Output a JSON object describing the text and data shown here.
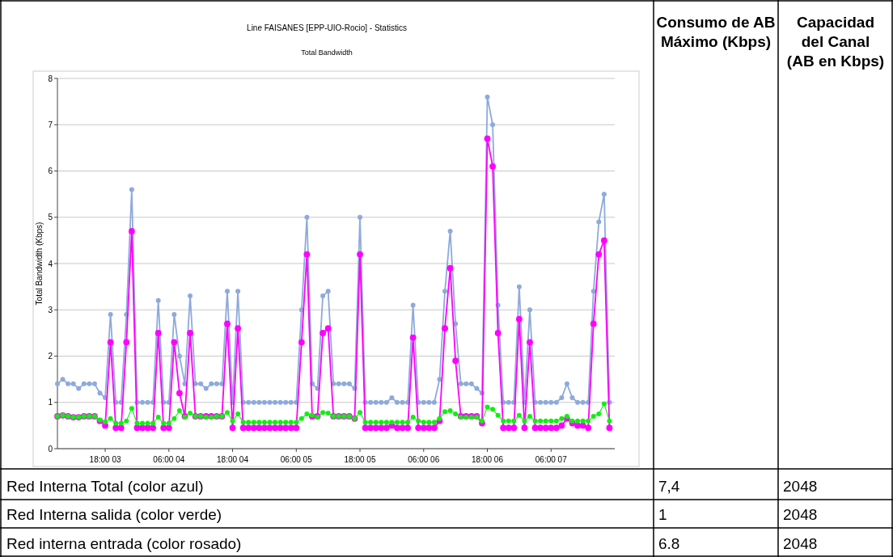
{
  "chart_data": [
    {
      "type": "line",
      "title": "Line FAISANES [EPP-UIO-Rocio] - Statistics",
      "subtitle": "Total Bandwidth",
      "ylabel": "Total Bandwidth (Kbps)",
      "marker": "circle",
      "grid": "y",
      "categories": [
        null,
        null,
        null,
        null,
        null,
        null,
        null,
        null,
        null,
        "18:00 03",
        null,
        null,
        null,
        null,
        null,
        null,
        null,
        null,
        null,
        null,
        null,
        "06:00 04",
        null,
        null,
        null,
        null,
        null,
        null,
        null,
        null,
        null,
        null,
        null,
        "18:00 04",
        null,
        null,
        null,
        null,
        null,
        null,
        null,
        null,
        null,
        null,
        null,
        "06:00 05",
        null,
        null,
        null,
        null,
        null,
        null,
        null,
        null,
        null,
        null,
        null,
        "18:00 05",
        null,
        null,
        null,
        null,
        null,
        null,
        null,
        null,
        null,
        null,
        null,
        "06:00 06",
        null,
        null,
        null,
        null,
        null,
        null,
        null,
        null,
        null,
        null,
        null,
        "18:00 06",
        null,
        null,
        null,
        null,
        null,
        null,
        null,
        null,
        null,
        null,
        null,
        "06:00 07",
        null,
        null,
        null,
        null,
        null,
        null,
        null,
        null,
        null,
        null,
        null
      ],
      "ylim": [
        0,
        8
      ],
      "yticks": [
        0,
        1,
        2,
        3,
        4,
        5,
        6,
        7,
        8
      ],
      "series": [
        {
          "color": "#8eaadc",
          "values": [
            1.4,
            1.5,
            1.4,
            1.4,
            1.3,
            1.4,
            1.4,
            1.4,
            1.2,
            1.1,
            2.9,
            1,
            1,
            2.9,
            5.6,
            1,
            1,
            1,
            1,
            3.2,
            1,
            1,
            2.9,
            2,
            1.4,
            3.3,
            1.4,
            1.4,
            1.3,
            1.4,
            1.4,
            1.4,
            3.4,
            1,
            3.4,
            1,
            1,
            1,
            1,
            1,
            1,
            1,
            1,
            1,
            1,
            1,
            3,
            5,
            1.4,
            1.3,
            3.3,
            3.4,
            1.4,
            1.4,
            1.4,
            1.4,
            1.3,
            5,
            1,
            1,
            1,
            1,
            1,
            1.1,
            1,
            1,
            1,
            3.1,
            1,
            1,
            1,
            1,
            1.5,
            3.4,
            4.7,
            2.7,
            1.4,
            1.4,
            1.4,
            1.3,
            1.2,
            7.6,
            7,
            3.1,
            1,
            1,
            1,
            3.5,
            1,
            3,
            1,
            1,
            1,
            1,
            1,
            1.1,
            1.4,
            1.1,
            1,
            1,
            1,
            3.4,
            4.9,
            5.5,
            1
          ]
        },
        {
          "color": "#ff00ff",
          "values": [
            0.7,
            0.72,
            0.7,
            0.68,
            0.68,
            0.7,
            0.7,
            0.7,
            0.6,
            0.5,
            2.3,
            0.45,
            0.45,
            2.3,
            4.7,
            0.45,
            0.45,
            0.45,
            0.45,
            2.5,
            0.45,
            0.45,
            2.3,
            1.2,
            0.7,
            2.5,
            0.7,
            0.7,
            0.7,
            0.7,
            0.7,
            0.7,
            2.7,
            0.45,
            2.6,
            0.45,
            0.45,
            0.45,
            0.45,
            0.45,
            0.45,
            0.45,
            0.45,
            0.45,
            0.45,
            0.45,
            2.3,
            4.2,
            0.7,
            0.7,
            2.5,
            2.6,
            0.7,
            0.7,
            0.7,
            0.7,
            0.65,
            4.2,
            0.45,
            0.45,
            0.45,
            0.45,
            0.45,
            0.5,
            0.45,
            0.45,
            0.45,
            2.4,
            0.45,
            0.45,
            0.45,
            0.45,
            0.6,
            2.6,
            3.9,
            1.9,
            0.7,
            0.7,
            0.7,
            0.7,
            0.55,
            6.7,
            6.1,
            2.5,
            0.45,
            0.45,
            0.45,
            2.8,
            0.45,
            2.3,
            0.45,
            0.45,
            0.45,
            0.45,
            0.45,
            0.5,
            0.65,
            0.55,
            0.5,
            0.5,
            0.45,
            2.7,
            4.2,
            4.5,
            0.45
          ]
        },
        {
          "color": "#11ee11",
          "values": [
            0.7,
            0.72,
            0.7,
            0.68,
            0.68,
            0.7,
            0.7,
            0.7,
            0.62,
            0.58,
            0.65,
            0.55,
            0.55,
            0.6,
            0.87,
            0.55,
            0.55,
            0.55,
            0.55,
            0.68,
            0.55,
            0.55,
            0.65,
            0.82,
            0.68,
            0.77,
            0.7,
            0.7,
            0.68,
            0.68,
            0.7,
            0.7,
            0.78,
            0.6,
            0.75,
            0.57,
            0.57,
            0.57,
            0.57,
            0.57,
            0.57,
            0.57,
            0.57,
            0.57,
            0.57,
            0.57,
            0.65,
            0.75,
            0.72,
            0.68,
            0.78,
            0.77,
            0.7,
            0.7,
            0.7,
            0.7,
            0.65,
            0.78,
            0.57,
            0.57,
            0.57,
            0.57,
            0.57,
            0.57,
            0.57,
            0.57,
            0.57,
            0.68,
            0.6,
            0.57,
            0.57,
            0.57,
            0.65,
            0.8,
            0.82,
            0.75,
            0.68,
            0.68,
            0.68,
            0.68,
            0.6,
            0.9,
            0.85,
            0.72,
            0.6,
            0.6,
            0.6,
            0.72,
            0.6,
            0.7,
            0.6,
            0.6,
            0.6,
            0.6,
            0.6,
            0.65,
            0.7,
            0.6,
            0.6,
            0.6,
            0.6,
            0.7,
            0.75,
            0.97,
            0.6
          ]
        }
      ]
    },
    {
      "type": "other",
      "annotations": [
        "Consumo de AB Máximo (Kbps)",
        "Capacidad del Canal (AB en Kbps)",
        "Red Interna Total (color azul)",
        "7,4",
        "2048",
        "Red Interna salida (color verde)",
        "1",
        "2048",
        "Red interna entrada (color rosado)",
        "6.8",
        "2048"
      ]
    }
  ]
}
